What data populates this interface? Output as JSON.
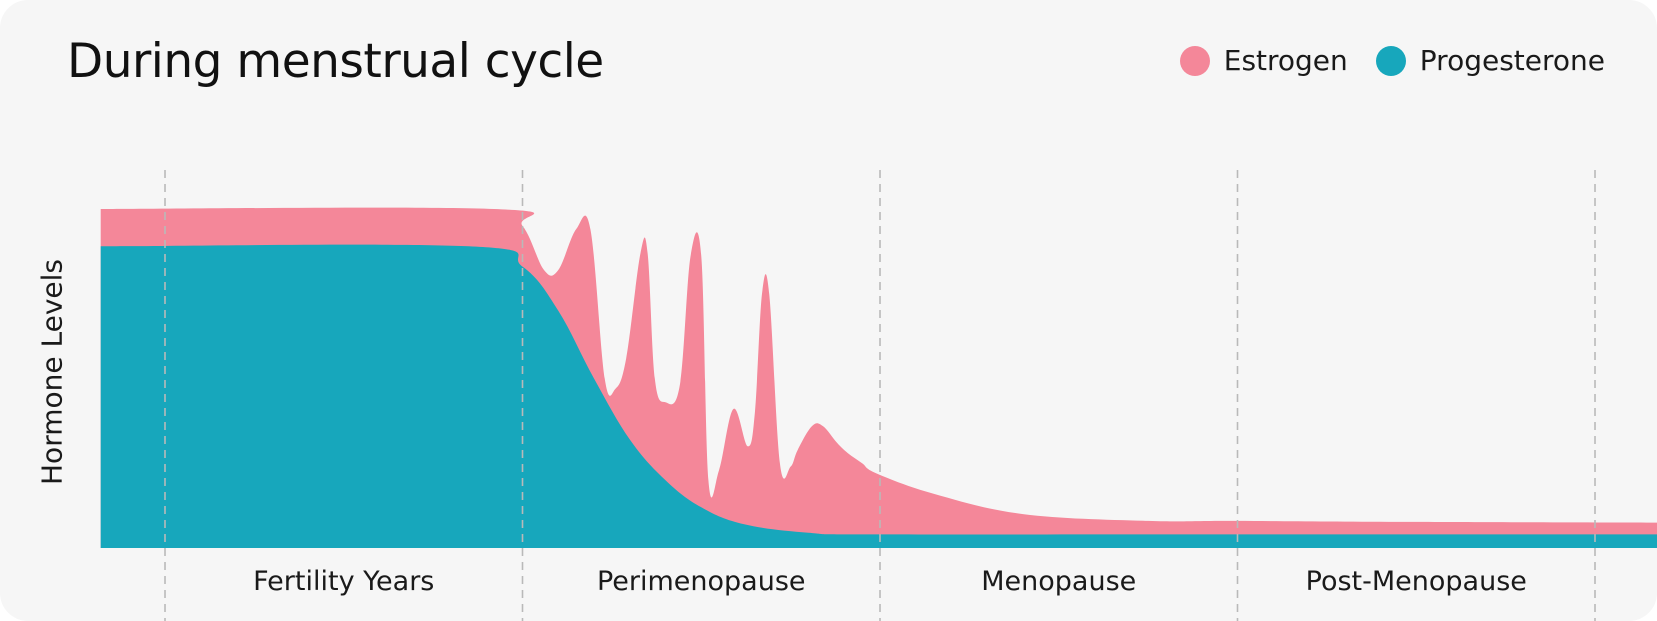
{
  "title": "During menstrual cycle",
  "legend": [
    {
      "label": "Estrogen",
      "color": "#f48799"
    },
    {
      "label": "Progesterone",
      "color": "#17a7bc"
    }
  ],
  "chart_data": {
    "type": "area",
    "title": "During menstrual cycle",
    "ylabel": "Hormone Levels",
    "xlabel": "",
    "x_categories": [
      "Fertility Years",
      "Perimenopause",
      "Menopause",
      "Post-Menopause"
    ],
    "ylim": [
      0,
      100
    ],
    "xlim": [
      -0.18,
      4.18
    ],
    "grid": "vertical dashed boundaries",
    "legend_position": "top-right",
    "series": [
      {
        "name": "Estrogen",
        "color": "#f48799",
        "x": [
          -0.18,
          0.92,
          1.0,
          1.06,
          1.1,
          1.15,
          1.19,
          1.23,
          1.26,
          1.29,
          1.33,
          1.35,
          1.37,
          1.4,
          1.44,
          1.47,
          1.5,
          1.52,
          1.55,
          1.59,
          1.63,
          1.65,
          1.67,
          1.69,
          1.72,
          1.75,
          1.77,
          1.81,
          1.84,
          1.88,
          1.91,
          1.95,
          1.99,
          2.15,
          2.4,
          2.75,
          3.0,
          3.5,
          4.18
        ],
        "values": [
          100,
          100,
          95,
          82,
          82,
          94,
          94,
          50,
          47,
          56,
          87,
          87,
          50,
          43,
          48,
          86,
          86,
          20,
          23,
          41,
          30,
          40,
          75,
          75,
          25,
          24,
          29,
          36,
          36,
          31,
          28,
          25,
          22,
          16,
          10,
          8,
          8,
          7.7,
          7.5
        ]
      },
      {
        "name": "Progesterone",
        "color": "#17a7bc",
        "x": [
          -0.18,
          0.85,
          1.0,
          1.1,
          1.2,
          1.3,
          1.4,
          1.5,
          1.62,
          1.8,
          2.0,
          3.0,
          4.18
        ],
        "values": [
          89,
          89,
          83,
          70,
          50,
          32,
          20,
          12,
          7,
          4.5,
          4,
          4,
          4
        ]
      }
    ]
  }
}
